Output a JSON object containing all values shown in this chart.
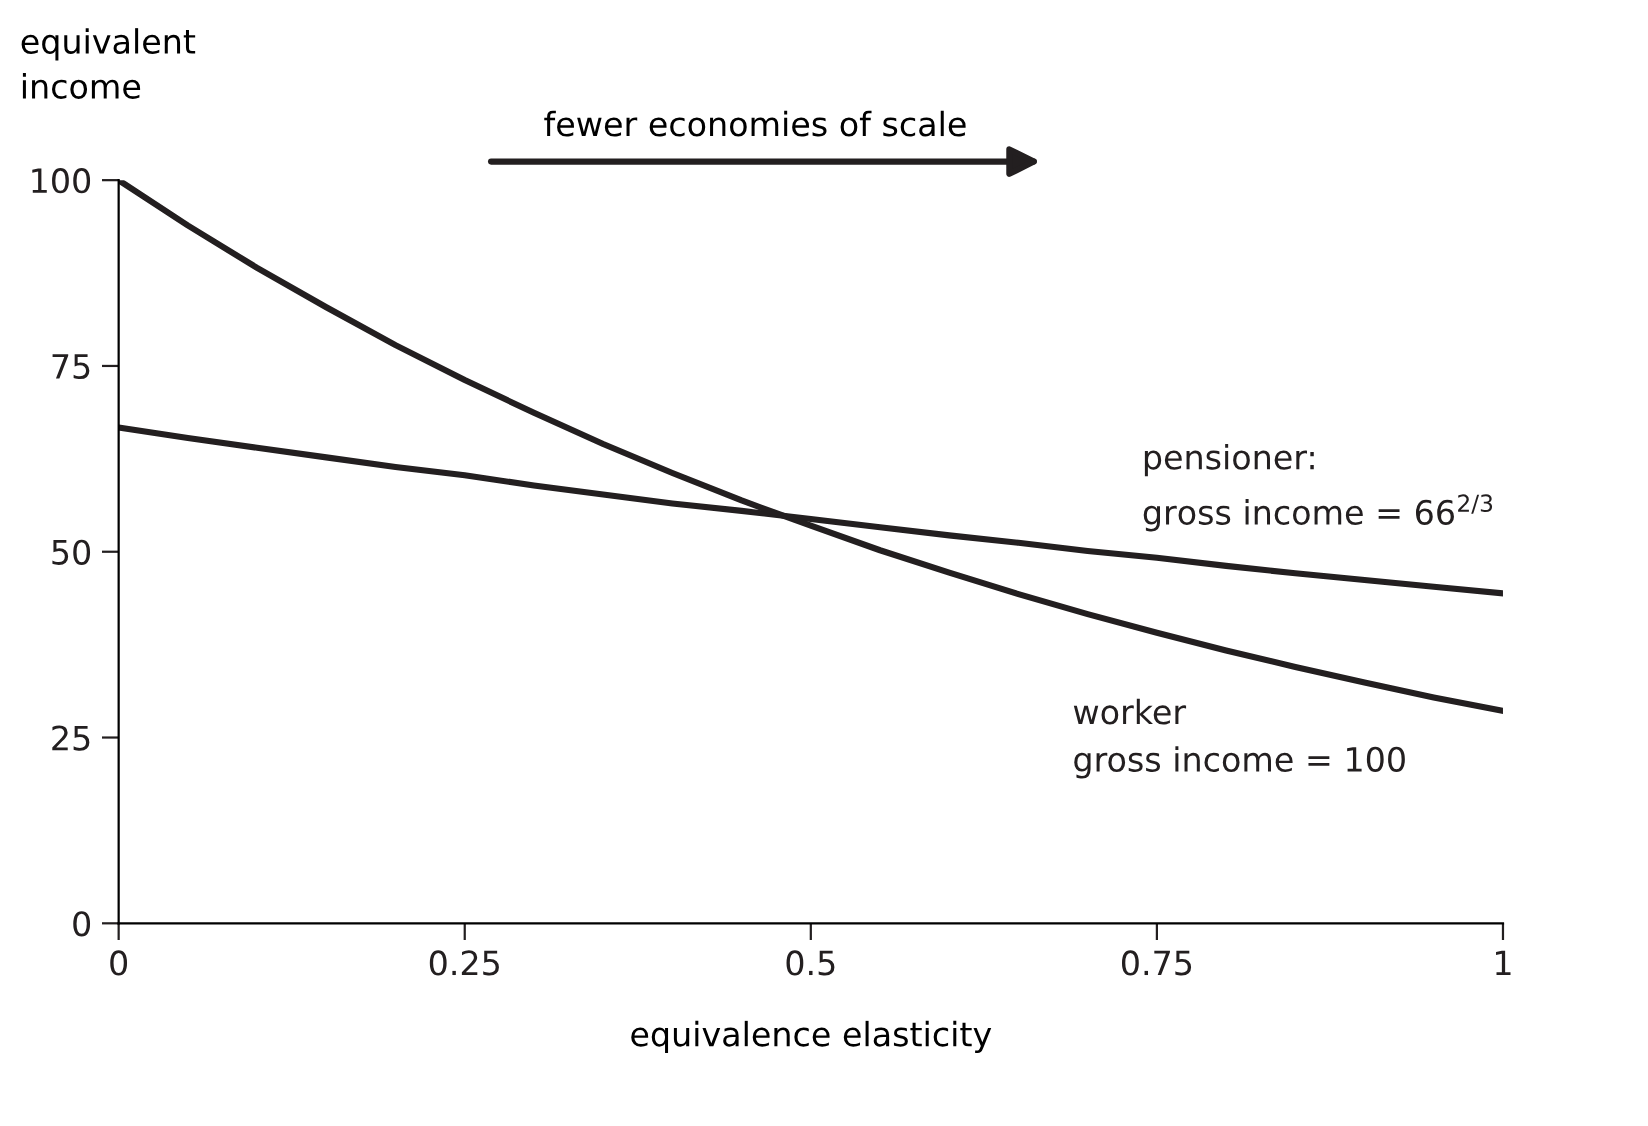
{
  "chart_data": {
    "type": "line",
    "xlabel": "equivalence elasticity",
    "ylabel": "equivalent\nincome",
    "x": [
      0,
      0.05,
      0.1,
      0.15,
      0.2,
      0.25,
      0.3,
      0.35,
      0.4,
      0.45,
      0.5,
      0.55,
      0.6,
      0.65,
      0.7,
      0.75,
      0.8,
      0.85,
      0.9,
      0.95,
      1
    ],
    "series": [
      {
        "name": "pensioner:\ngross income = 66$^{2/3}$",
        "color": "#231f20",
        "values": [
          66.7,
          65.3,
          64.0,
          62.7,
          61.4,
          60.3,
          58.9,
          57.7,
          56.5,
          55.5,
          54.4,
          53.3,
          52.2,
          51.2,
          50.1,
          49.2,
          48.1,
          47.1,
          46.2,
          45.3,
          44.4
        ]
      },
      {
        "name": "worker\ngross income = 100",
        "color": "#231f20",
        "values": [
          100,
          93.9,
          88.2,
          82.9,
          77.8,
          73.1,
          68.7,
          64.5,
          60.6,
          56.9,
          53.5,
          50.2,
          47.2,
          44.3,
          41.6,
          39.1,
          36.7,
          34.5,
          32.4,
          30.4,
          28.6
        ]
      }
    ],
    "xlim": [
      0,
      1
    ],
    "ylim": [
      0,
      100
    ],
    "xticks": [
      0,
      0.25,
      0.5,
      0.75,
      1
    ],
    "yticks": [
      0,
      25,
      50,
      75,
      100
    ],
    "annotations": [
      "fewer economies of scale"
    ],
    "grid": false,
    "legend": false,
    "marker": "none",
    "line_style": "solid"
  }
}
